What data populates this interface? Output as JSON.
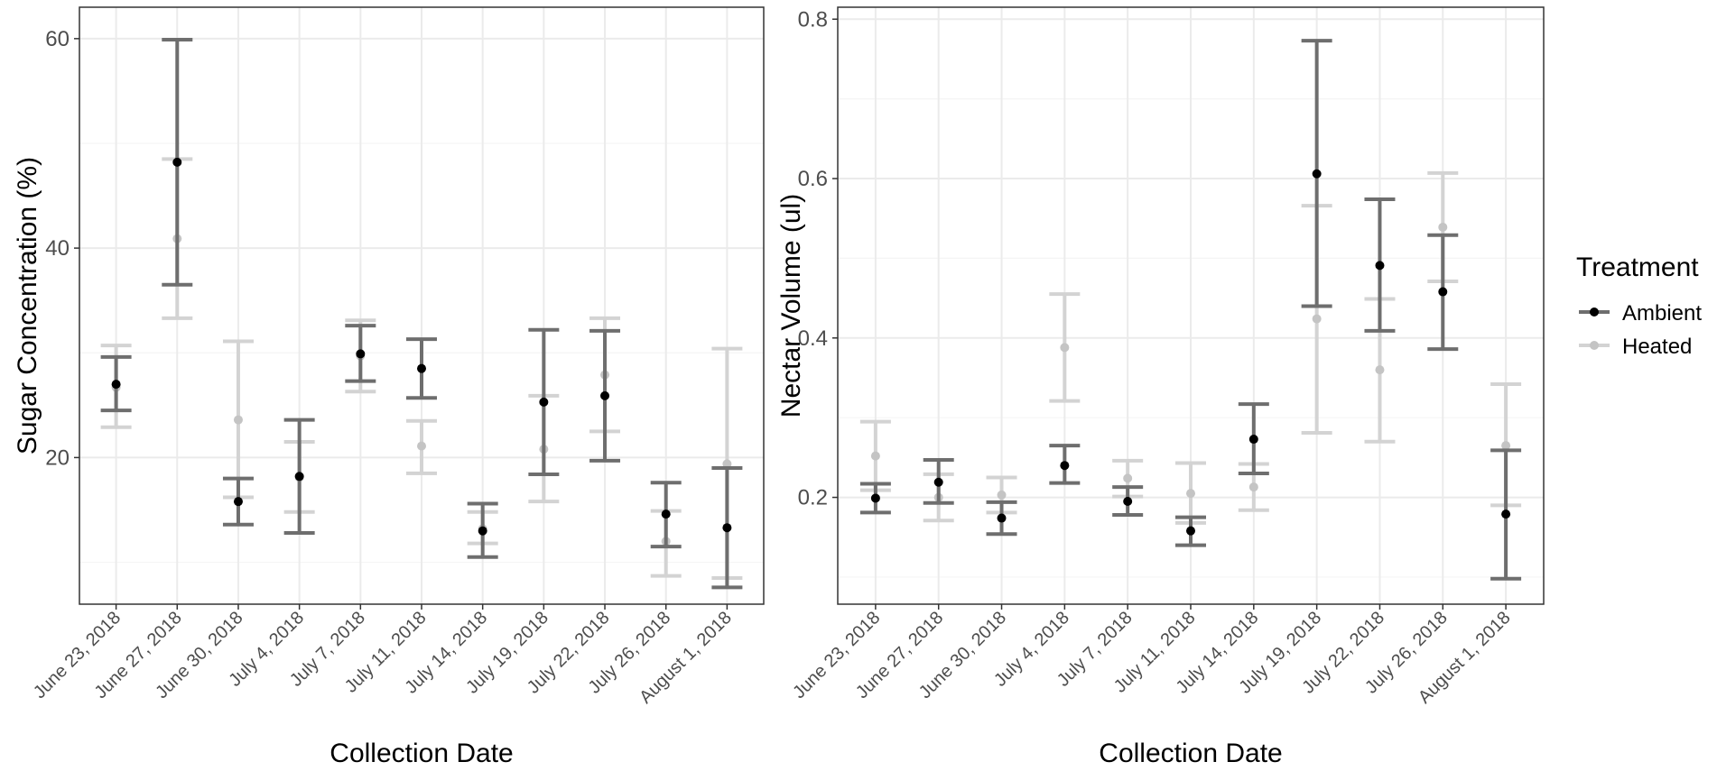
{
  "chart_data": [
    {
      "type": "errorbar",
      "xlabel": "Collection Date",
      "ylabel": "Sugar Concentration (%)",
      "ylim": [
        6,
        63
      ],
      "yticks": [
        20,
        40,
        60
      ],
      "ytick_labels": [
        "20",
        "40",
        "60"
      ],
      "yminor": [
        10,
        30,
        50
      ],
      "categories": [
        "June 23, 2018",
        "June 27, 2018",
        "June 30, 2018",
        "July 4, 2018",
        "July 7, 2018",
        "July 11, 2018",
        "July 14, 2018",
        "July 19, 2018",
        "July 22, 2018",
        "July 26, 2018",
        "August 1, 2018"
      ],
      "series": [
        {
          "name": "Ambient",
          "mean": [
            27.0,
            48.2,
            15.8,
            18.2,
            29.9,
            28.5,
            13.0,
            25.3,
            25.9,
            14.6,
            13.3
          ],
          "lower": [
            24.5,
            36.5,
            13.6,
            12.8,
            27.3,
            25.7,
            10.5,
            18.4,
            19.7,
            11.5,
            7.6
          ],
          "upper": [
            29.6,
            59.9,
            18.0,
            23.6,
            32.6,
            31.3,
            15.6,
            32.2,
            32.1,
            17.6,
            19.0
          ]
        },
        {
          "name": "Heated",
          "mean": [
            26.7,
            40.9,
            23.6,
            18.1,
            29.7,
            21.1,
            13.2,
            20.8,
            27.9,
            12.0,
            19.4
          ],
          "lower": [
            22.9,
            33.3,
            16.2,
            14.8,
            26.3,
            18.5,
            11.8,
            15.8,
            22.5,
            8.7,
            8.5
          ],
          "upper": [
            30.7,
            48.5,
            31.1,
            21.5,
            33.1,
            23.5,
            14.8,
            25.9,
            33.3,
            14.9,
            30.4
          ]
        }
      ]
    },
    {
      "type": "errorbar",
      "xlabel": "Collection Date",
      "ylabel": "Nectar Volume (ul)",
      "ylim": [
        0.066,
        0.815
      ],
      "yticks": [
        0.2,
        0.4,
        0.6,
        0.8
      ],
      "ytick_labels": [
        "0.2",
        "0.4",
        "0.6",
        "0.8"
      ],
      "yminor": [
        0.1,
        0.3,
        0.5,
        0.7
      ],
      "categories": [
        "June 23, 2018",
        "June 27, 2018",
        "June 30, 2018",
        "July 4, 2018",
        "July 7, 2018",
        "July 11, 2018",
        "July 14, 2018",
        "July 19, 2018",
        "July 22, 2018",
        "July 26, 2018",
        "August 1, 2018"
      ],
      "series": [
        {
          "name": "Ambient",
          "mean": [
            0.199,
            0.219,
            0.174,
            0.24,
            0.195,
            0.158,
            0.273,
            0.606,
            0.491,
            0.458,
            0.179
          ],
          "lower": [
            0.181,
            0.193,
            0.154,
            0.218,
            0.178,
            0.14,
            0.23,
            0.44,
            0.409,
            0.386,
            0.098
          ],
          "upper": [
            0.217,
            0.247,
            0.194,
            0.265,
            0.213,
            0.175,
            0.317,
            0.773,
            0.574,
            0.529,
            0.259
          ]
        },
        {
          "name": "Heated",
          "mean": [
            0.252,
            0.2,
            0.203,
            0.388,
            0.224,
            0.205,
            0.213,
            0.424,
            0.36,
            0.539,
            0.265
          ],
          "lower": [
            0.209,
            0.171,
            0.181,
            0.321,
            0.201,
            0.168,
            0.184,
            0.281,
            0.27,
            0.471,
            0.19
          ],
          "upper": [
            0.295,
            0.229,
            0.225,
            0.455,
            0.246,
            0.243,
            0.242,
            0.566,
            0.449,
            0.607,
            0.342
          ]
        }
      ]
    }
  ],
  "legend": {
    "title": "Treatment",
    "items": [
      {
        "label": "Ambient",
        "bar_color": "#6e6e6e",
        "point_color": "#000000"
      },
      {
        "label": "Heated",
        "bar_color": "#d3d3d3",
        "point_color": "#c4c4c4"
      }
    ]
  },
  "colors": {
    "ambient_bar": "#6e6e6e",
    "ambient_point": "#000000",
    "heated_bar": "#d3d3d3",
    "heated_point": "#c4c4c4",
    "grid_major": "#ebebeb",
    "grid_minor": "#f5f5f5",
    "panel_border": "#333333"
  }
}
